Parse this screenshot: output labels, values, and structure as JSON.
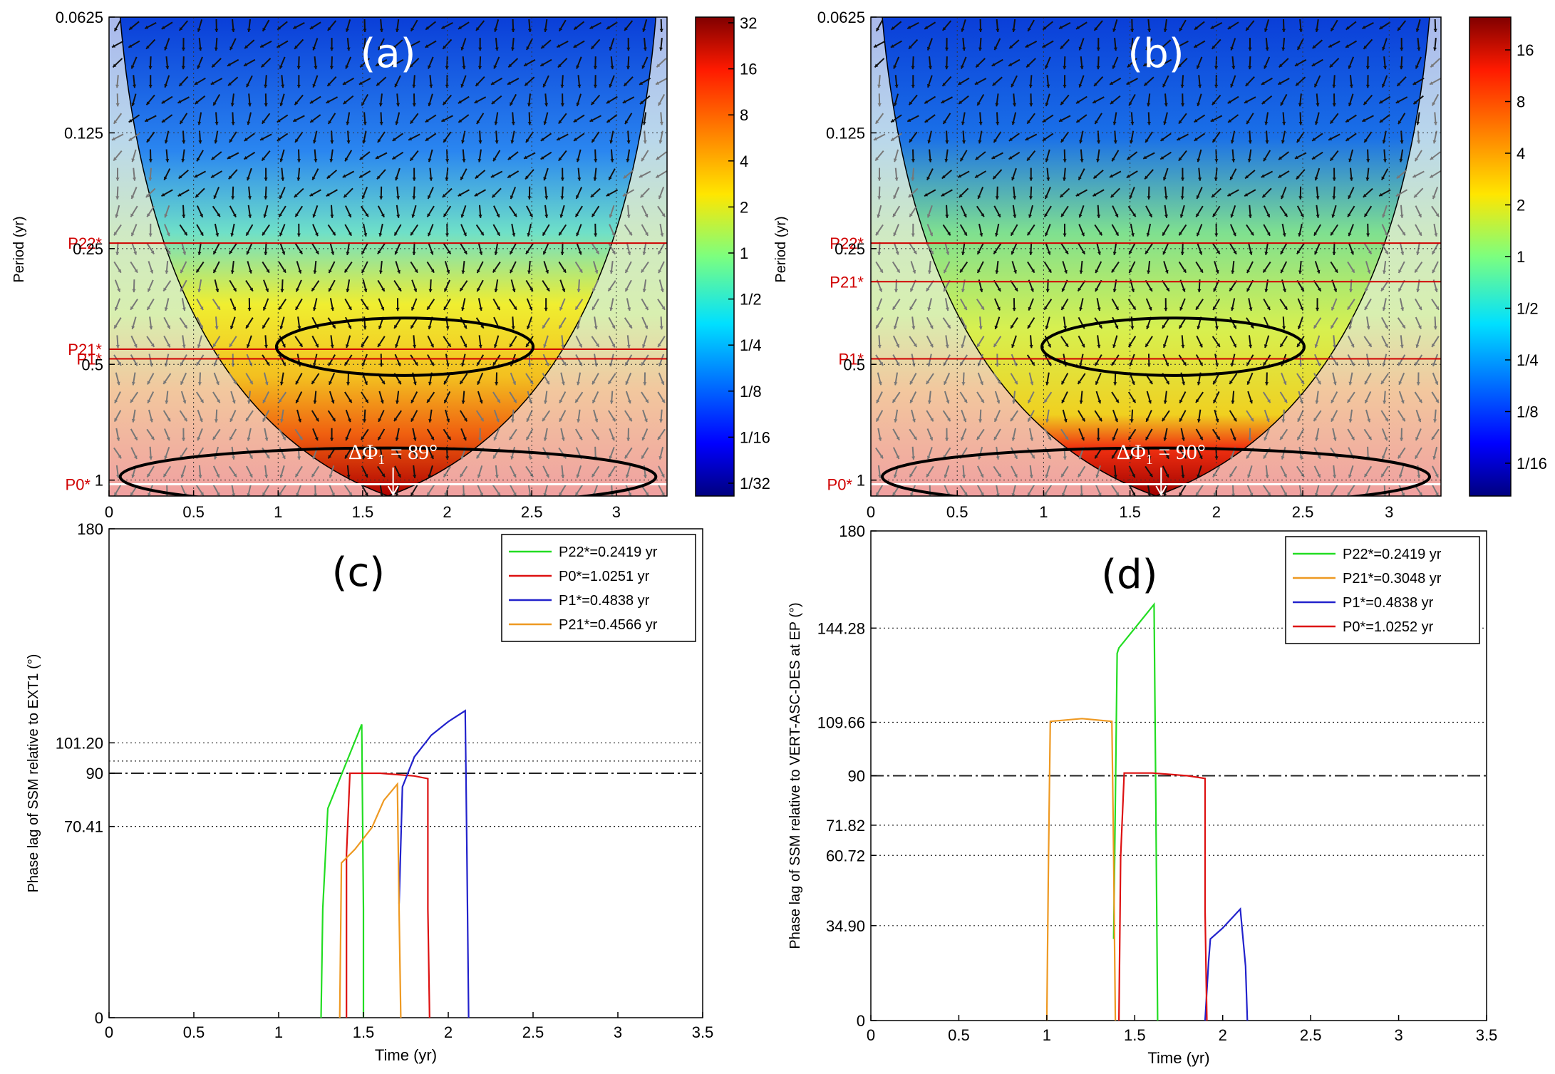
{
  "wtc_panels": [
    {
      "id": "a",
      "panel_label": "(a)",
      "ylabel": "Period (yr)",
      "y_ticks": [
        "0.0625",
        "0.125",
        "0.25",
        "0.5",
        "1"
      ],
      "x_ticks": [
        "0",
        "0.5",
        "1",
        "1.5",
        "2",
        "2.5",
        "3"
      ],
      "colorbar_ticks": [
        "32",
        "16",
        "8",
        "4",
        "2",
        "1",
        "1/2",
        "1/4",
        "1/8",
        "1/16",
        "1/32"
      ],
      "markers": [
        {
          "label": "P22*",
          "period": 0.2419
        },
        {
          "label": "P21*",
          "period": 0.4566
        },
        {
          "label": "P1*",
          "period": 0.4838
        },
        {
          "label": "P0*",
          "period": 1.0251
        }
      ],
      "annotation": "ΔΦ",
      "annotation_sub": "1",
      "annotation_value": " = 89°",
      "arrow_time": 1.68
    },
    {
      "id": "b",
      "panel_label": "(b)",
      "ylabel": "Period (yr)",
      "y_ticks": [
        "0.0625",
        "0.125",
        "0.25",
        "0.5",
        "1"
      ],
      "x_ticks": [
        "0",
        "0.5",
        "1",
        "1.5",
        "2",
        "2.5",
        "3"
      ],
      "colorbar_ticks": [
        "16",
        "8",
        "4",
        "2",
        "1",
        "1/2",
        "1/4",
        "1/8",
        "1/16"
      ],
      "markers": [
        {
          "label": "P22*",
          "period": 0.2419
        },
        {
          "label": "P21*",
          "period": 0.3048
        },
        {
          "label": "P1*",
          "period": 0.4838
        },
        {
          "label": "P0*",
          "period": 1.0252
        }
      ],
      "annotation": "ΔΦ",
      "annotation_sub": "1",
      "annotation_value": " = 90°",
      "arrow_time": 1.68
    }
  ],
  "chart_data": [
    {
      "type": "heatmap",
      "panel": "(a)",
      "ylabel": "Period (yr)",
      "xlim": [
        0,
        3.3
      ],
      "ylim_period": [
        0.0625,
        1.1
      ],
      "y_scale": "log2",
      "colorbar_range": [
        "1/32",
        "32"
      ],
      "markers": {
        "P22*": 0.2419,
        "P21*": 0.4566,
        "P1*": 0.4838,
        "P0*": 1.0251
      },
      "annotation": "ΔΦ1 = 89°"
    },
    {
      "type": "heatmap",
      "panel": "(b)",
      "ylabel": "Period (yr)",
      "xlim": [
        0,
        3.3
      ],
      "ylim_period": [
        0.0625,
        1.1
      ],
      "y_scale": "log2",
      "colorbar_range": [
        "1/16",
        "16"
      ],
      "markers": {
        "P22*": 0.2419,
        "P21*": 0.3048,
        "P1*": 0.4838,
        "P0*": 1.0252
      },
      "annotation": "ΔΦ1 = 90°"
    },
    {
      "type": "line",
      "panel": "(c)",
      "panel_label": "(c)",
      "xlabel": "Time (yr)",
      "ylabel": "Phase lag of SSM relative to EXT1 (°)",
      "xlim": [
        0,
        3.5
      ],
      "ylim": [
        0,
        180
      ],
      "x_ticks": [
        "0",
        "0.5",
        "1",
        "1.5",
        "2",
        "2.5",
        "3",
        "3.5"
      ],
      "y_ticks": [
        {
          "label": "0",
          "value": 0
        },
        {
          "label": "70.41",
          "value": 70.41
        },
        {
          "label": "90",
          "value": 90
        },
        {
          "label": "101.20",
          "value": 101.2
        },
        {
          "label": "180",
          "value": 180
        }
      ],
      "ref_lines": [
        {
          "value": 70.41,
          "style": "dotted"
        },
        {
          "value": 94.5,
          "style": "dotted"
        },
        {
          "value": 101.2,
          "style": "dotted"
        },
        {
          "value": 90,
          "style": "dashdot"
        }
      ],
      "legend_position": "top-right",
      "series": [
        {
          "name": "P22*=0.2419 yr",
          "color": "#22dd22",
          "x": [
            1.25,
            1.26,
            1.29,
            1.49,
            1.5,
            1.5
          ],
          "y": [
            0,
            40,
            77,
            108,
            40,
            0
          ]
        },
        {
          "name": "P0*=1.0251 yr",
          "color": "#dd1111",
          "x": [
            1.4,
            1.4,
            1.42,
            1.6,
            1.8,
            1.88,
            1.88,
            1.89
          ],
          "y": [
            0,
            60,
            90,
            90,
            89,
            88,
            40,
            0
          ]
        },
        {
          "name": "P1*=0.4838 yr",
          "color": "#2222cc",
          "x": [
            1.71,
            1.73,
            1.8,
            1.9,
            2.0,
            2.1,
            2.11,
            2.12
          ],
          "y": [
            42,
            85,
            96,
            104,
            109,
            113,
            60,
            0
          ]
        },
        {
          "name": "P21*=0.4566 yr",
          "color": "#ee9922",
          "x": [
            1.36,
            1.37,
            1.45,
            1.55,
            1.62,
            1.7,
            1.71,
            1.72
          ],
          "y": [
            0,
            57,
            62,
            70,
            80,
            86,
            40,
            0
          ]
        }
      ]
    },
    {
      "type": "line",
      "panel": "(d)",
      "panel_label": "(d)",
      "xlabel": "Time (yr)",
      "ylabel": "Phase lag of SSM relative to VERT-ASC-DES at EP (°)",
      "xlim": [
        0,
        3.5
      ],
      "ylim": [
        0,
        180
      ],
      "x_ticks": [
        "0",
        "0.5",
        "1",
        "1.5",
        "2",
        "2.5",
        "3",
        "3.5"
      ],
      "y_ticks": [
        {
          "label": "0",
          "value": 0
        },
        {
          "label": "34.90",
          "value": 34.9
        },
        {
          "label": "60.72",
          "value": 60.72
        },
        {
          "label": "71.82",
          "value": 71.82
        },
        {
          "label": "90",
          "value": 90
        },
        {
          "label": "109.66",
          "value": 109.66
        },
        {
          "label": "144.28",
          "value": 144.28
        },
        {
          "label": "180",
          "value": 180
        }
      ],
      "ref_lines": [
        {
          "value": 34.9,
          "style": "dotted"
        },
        {
          "value": 60.72,
          "style": "dotted"
        },
        {
          "value": 71.82,
          "style": "dotted"
        },
        {
          "value": 109.66,
          "style": "dotted"
        },
        {
          "value": 144.28,
          "style": "dotted"
        },
        {
          "value": 90,
          "style": "dashdot"
        }
      ],
      "legend_position": "top-right",
      "series": [
        {
          "name": "P22*=0.2419 yr",
          "color": "#22dd22",
          "x": [
            1.38,
            1.39,
            1.4,
            1.41,
            1.61,
            1.62,
            1.63
          ],
          "y": [
            30,
            81,
            135,
            137,
            153,
            80,
            0
          ]
        },
        {
          "name": "P21*=0.3048 yr",
          "color": "#ee9922",
          "x": [
            1.0,
            1.01,
            1.02,
            1.2,
            1.37,
            1.38,
            1.39
          ],
          "y": [
            0,
            60,
            110,
            111,
            110,
            60,
            0
          ]
        },
        {
          "name": "P1*=0.4838 yr",
          "color": "#2222cc",
          "x": [
            1.9,
            1.92,
            1.93,
            2.0,
            2.1,
            2.13,
            2.14
          ],
          "y": [
            0,
            22,
            30,
            34,
            41,
            20,
            0
          ]
        },
        {
          "name": "P0*=1.0252 yr",
          "color": "#dd1111",
          "x": [
            1.41,
            1.42,
            1.44,
            1.6,
            1.8,
            1.9,
            1.9,
            1.91
          ],
          "y": [
            0,
            60,
            91,
            91,
            90,
            89,
            40,
            0
          ]
        }
      ]
    }
  ]
}
